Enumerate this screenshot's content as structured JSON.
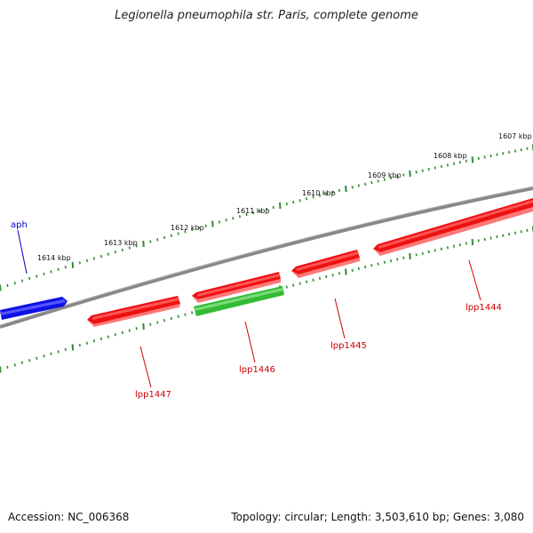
{
  "title": "Legionella pneumophila str. Paris, complete genome",
  "footer": {
    "accession": "Accession: NC_006368",
    "summary": "Topology: circular; Length: 3,503,610 bp; Genes: 3,080"
  },
  "colors": {
    "backbone": "#888888",
    "ticks": "#2e8b2e",
    "forward_gene": "#1010e6",
    "reverse_gene": "#ee1111",
    "highlight_gene": "#33bb33",
    "gene_label": "#cc0000",
    "aph_label": "#0000cc"
  },
  "kbp_labels": [
    "1607 kbp",
    "1608 kbp",
    "1609 kbp",
    "1610 kbp",
    "1611 kbp",
    "1612 kbp",
    "1613 kbp",
    "1614 kbp"
  ],
  "genes": [
    {
      "name": "aph",
      "strand": "forward",
      "color": "blue"
    },
    {
      "name": "lpp1447",
      "strand": "reverse",
      "color": "red"
    },
    {
      "name": "lpp1446",
      "strand": "reverse",
      "color": "green"
    },
    {
      "name": "lpp1445",
      "strand": "reverse",
      "color": "red"
    },
    {
      "name": "lpp1444",
      "strand": "reverse",
      "color": "red"
    }
  ],
  "extra_gene_segment": {
    "strand": "reverse",
    "color": "red"
  }
}
